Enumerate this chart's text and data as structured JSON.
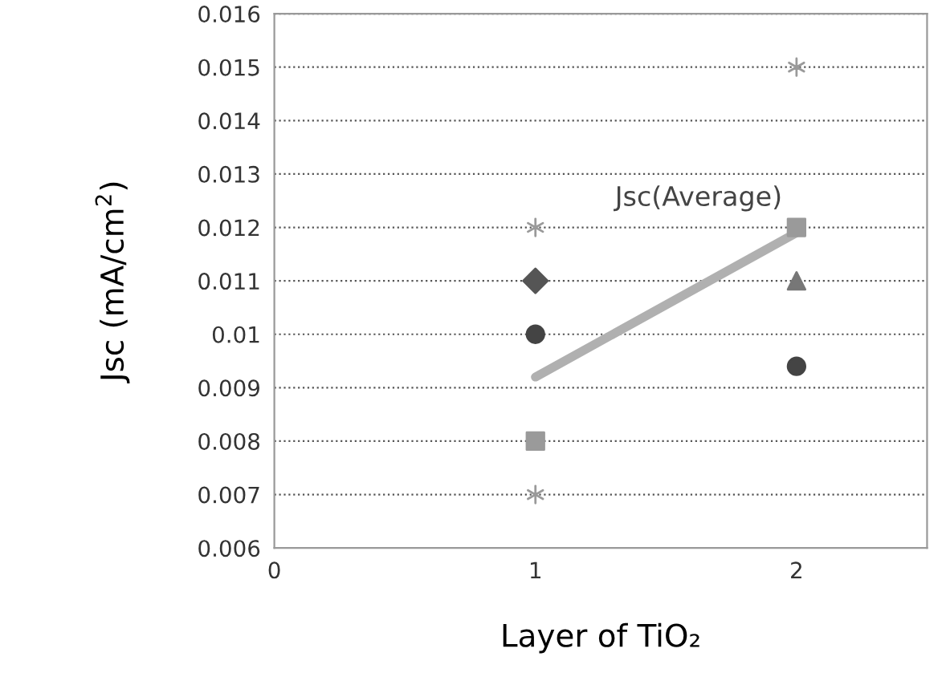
{
  "chart_data": {
    "type": "scatter",
    "xlabel": "Layer of TiO₂",
    "ylabel": "Jsc (mA/cm$^{2}$)",
    "x": [
      1,
      2
    ],
    "series": [
      {
        "color": "#9a9a9a",
        "marker": "cross",
        "values": [
          0.012,
          0.015
        ]
      },
      {
        "color": "#555555",
        "marker": "diamond",
        "values": [
          0.011,
          null
        ]
      },
      {
        "color": "#444444",
        "marker": "circle",
        "values": [
          0.01,
          0.0094
        ]
      },
      {
        "color": "#9a9a9a",
        "marker": "square",
        "values": [
          0.008,
          0.012
        ]
      },
      {
        "color": "#9a9a9a",
        "marker": "cross",
        "values": [
          0.007,
          null
        ]
      },
      {
        "color": "#777777",
        "marker": "triangle",
        "values": [
          null,
          0.011
        ]
      },
      {
        "type": "line",
        "color": "#b0b0b0",
        "marker": "none",
        "values": [
          0.0092,
          0.0119
        ]
      }
    ],
    "annotations": [
      "Jsc(Average)"
    ],
    "xlim": [
      0,
      2.5
    ],
    "ylim": [
      0.006,
      0.016
    ],
    "xticks": [
      0,
      1,
      2
    ],
    "yticks": [
      0.006,
      0.007,
      0.008,
      0.009,
      0.01,
      0.011,
      0.012,
      0.013,
      0.014,
      0.015,
      0.016
    ],
    "grid": "y"
  }
}
